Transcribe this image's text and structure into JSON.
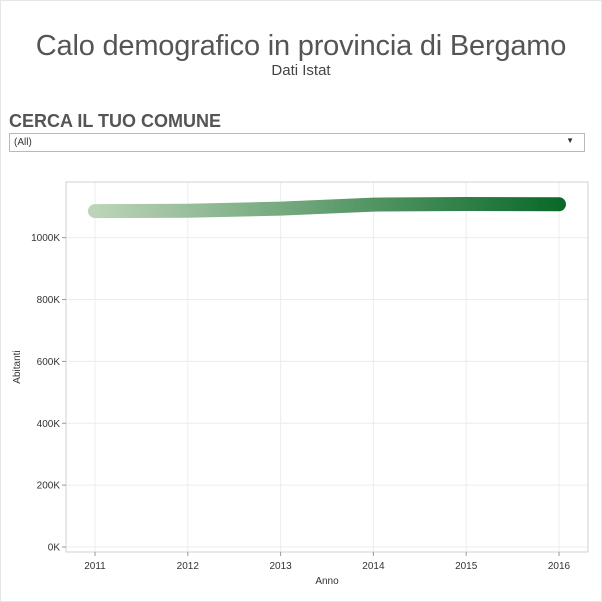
{
  "header": {
    "title": "Calo demografico in provincia di Bergamo",
    "subtitle": "Dati Istat"
  },
  "filter": {
    "label": "CERCA IL TUO COMUNE",
    "selected": "(All)"
  },
  "chart_data": {
    "type": "line",
    "x": [
      2011,
      2012,
      2013,
      2014,
      2015,
      2016
    ],
    "series": [
      {
        "values": [
          1086000,
          1087000,
          1094000,
          1107000,
          1109000,
          1108000
        ]
      }
    ],
    "xlabel": "Anno",
    "ylabel": "Abitanti",
    "ylim": [
      0,
      1180000
    ],
    "yticks": [
      0,
      200000,
      400000,
      600000,
      800000,
      1000000
    ],
    "ytick_labels": [
      "0K",
      "200K",
      "400K",
      "600K",
      "800K",
      "1000K"
    ],
    "xtick_labels": [
      "2011",
      "2012",
      "2013",
      "2014",
      "2015",
      "2016"
    ],
    "grid": true,
    "colors": {
      "start": "#bcd4b8",
      "end": "#0b6a2a"
    }
  }
}
